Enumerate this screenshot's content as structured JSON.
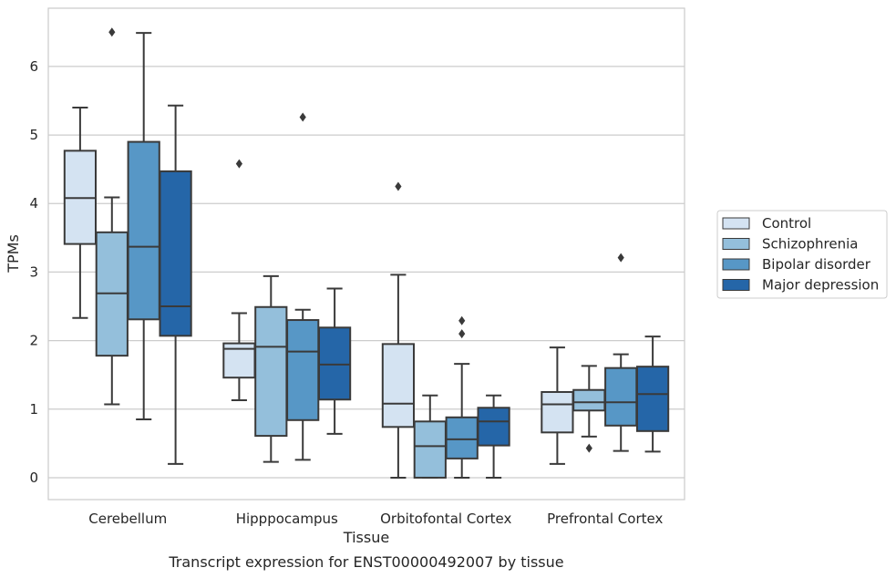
{
  "chart_data": {
    "type": "box",
    "title": "",
    "caption": "Transcript expression for ENST00000492007 by tissue",
    "xlabel": "Tissue",
    "ylabel": "TPMs",
    "ylim": [
      -0.32,
      6.85
    ],
    "yticks": [
      0,
      1,
      2,
      3,
      4,
      5,
      6
    ],
    "grid": "horizontal",
    "legend_position": "right",
    "categories": [
      "Cerebellum",
      "Hipppocampus",
      "Orbitofontal Cortex",
      "Prefrontal Cortex"
    ],
    "series": [
      {
        "name": "Control",
        "color": "#d4e3f2",
        "boxes": [
          {
            "whislo": 2.33,
            "q1": 3.41,
            "med": 4.08,
            "q3": 4.77,
            "whishi": 5.4,
            "fliers": []
          },
          {
            "whislo": 1.13,
            "q1": 1.46,
            "med": 1.88,
            "q3": 1.96,
            "whishi": 2.4,
            "fliers": [
              4.58
            ]
          },
          {
            "whislo": 0.0,
            "q1": 0.74,
            "med": 1.08,
            "q3": 1.95,
            "whishi": 2.96,
            "fliers": [
              4.25
            ]
          },
          {
            "whislo": 0.2,
            "q1": 0.66,
            "med": 1.07,
            "q3": 1.25,
            "whishi": 1.9,
            "fliers": []
          }
        ]
      },
      {
        "name": "Schizophrenia",
        "color": "#94bfdb",
        "boxes": [
          {
            "whislo": 1.07,
            "q1": 1.78,
            "med": 2.69,
            "q3": 3.58,
            "whishi": 4.09,
            "fliers": [
              6.5
            ]
          },
          {
            "whislo": 0.23,
            "q1": 0.61,
            "med": 1.91,
            "q3": 2.49,
            "whishi": 2.94,
            "fliers": []
          },
          {
            "whislo": 0.0,
            "q1": 0.0,
            "med": 0.46,
            "q3": 0.82,
            "whishi": 1.2,
            "fliers": []
          },
          {
            "whislo": 0.6,
            "q1": 0.98,
            "med": 1.1,
            "q3": 1.28,
            "whishi": 1.63,
            "fliers": [
              0.43
            ]
          }
        ]
      },
      {
        "name": "Bipolar disorder",
        "color": "#5797c6",
        "boxes": [
          {
            "whislo": 0.85,
            "q1": 2.31,
            "med": 3.37,
            "q3": 4.9,
            "whishi": 6.49,
            "fliers": []
          },
          {
            "whislo": 0.26,
            "q1": 0.84,
            "med": 1.84,
            "q3": 2.3,
            "whishi": 2.45,
            "fliers": [
              5.26
            ]
          },
          {
            "whislo": 0.0,
            "q1": 0.28,
            "med": 0.56,
            "q3": 0.88,
            "whishi": 1.66,
            "fliers": [
              2.1,
              2.29
            ]
          },
          {
            "whislo": 0.39,
            "q1": 0.76,
            "med": 1.1,
            "q3": 1.6,
            "whishi": 1.8,
            "fliers": [
              3.21
            ]
          }
        ]
      },
      {
        "name": "Major depression",
        "color": "#2566a8",
        "boxes": [
          {
            "whislo": 0.2,
            "q1": 2.07,
            "med": 2.5,
            "q3": 4.47,
            "whishi": 5.43,
            "fliers": []
          },
          {
            "whislo": 0.64,
            "q1": 1.14,
            "med": 1.65,
            "q3": 2.19,
            "whishi": 2.76,
            "fliers": []
          },
          {
            "whislo": 0.0,
            "q1": 0.47,
            "med": 0.82,
            "q3": 1.02,
            "whishi": 1.2,
            "fliers": []
          },
          {
            "whislo": 0.38,
            "q1": 0.68,
            "med": 1.22,
            "q3": 1.62,
            "whishi": 2.06,
            "fliers": []
          }
        ]
      }
    ]
  }
}
